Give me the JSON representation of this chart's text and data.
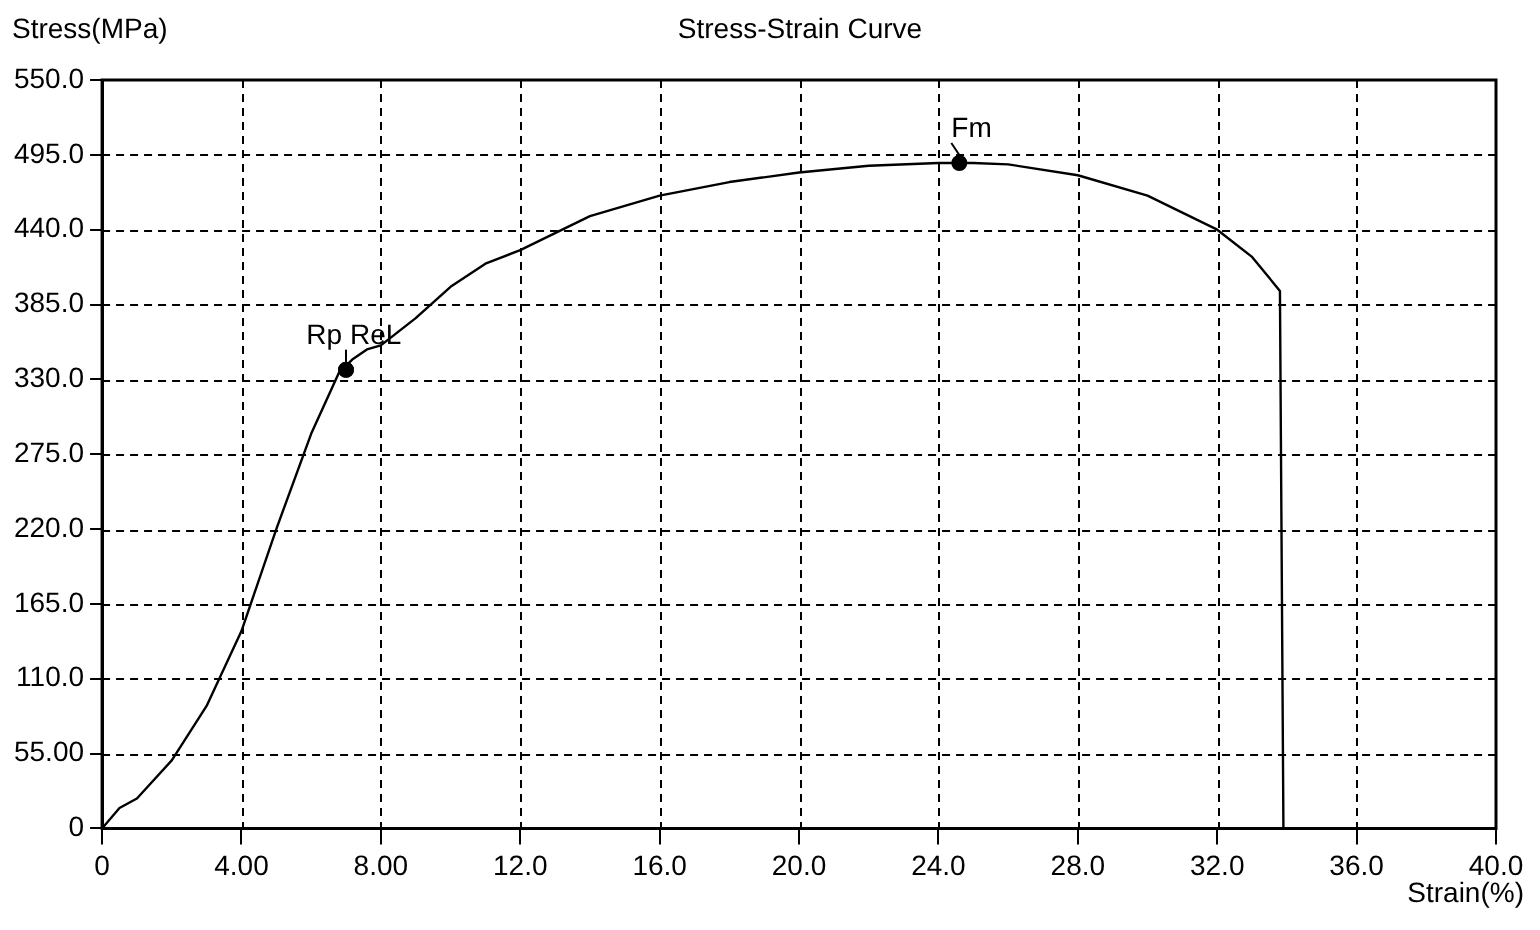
{
  "chart_data": {
    "type": "line",
    "title": "Stress-Strain Curve",
    "xlabel": "Strain(%)",
    "ylabel": "Stress(MPa)",
    "series": [
      {
        "type": "line",
        "color": "#000000",
        "marker": "none",
        "x": [
          0,
          0.5,
          1,
          2,
          3,
          4,
          5,
          6,
          6.8,
          7.2,
          7.6,
          8,
          9,
          10,
          11,
          12,
          14,
          16,
          18,
          20,
          22,
          24,
          25,
          26,
          28,
          30,
          32,
          33,
          33.8,
          33.9
        ],
        "values": [
          0,
          15,
          22,
          50,
          90,
          145,
          220,
          290,
          335,
          345,
          352,
          355,
          375,
          398,
          415,
          425,
          450,
          465,
          475,
          482,
          487,
          489,
          489,
          488,
          480,
          465,
          440,
          420,
          395,
          0
        ]
      },
      {
        "type": "scatter",
        "color": "#000000",
        "marker": "circle",
        "x": [
          7,
          7,
          24.6
        ],
        "values": [
          337,
          337,
          489
        ],
        "value_labels": [
          "Rp",
          "ReL",
          "Fm"
        ]
      }
    ],
    "xlim": [
      0,
      40
    ],
    "xticks": [
      0,
      {
        "value": 4,
        "label": "4.00"
      },
      {
        "value": 8,
        "label": "8.00"
      },
      {
        "value": 12,
        "label": "12.0"
      },
      {
        "value": 16,
        "label": "16.0"
      },
      {
        "value": 20,
        "label": "20.0"
      },
      {
        "value": 24,
        "label": "24.0"
      },
      {
        "value": 28,
        "label": "28.0"
      },
      {
        "value": 32,
        "label": "32.0"
      },
      {
        "value": 36,
        "label": "36.0"
      },
      {
        "value": 40,
        "label": "40.0"
      }
    ],
    "ylim": [
      0,
      550
    ],
    "yticks": [
      0,
      {
        "value": 55,
        "label": "55.00"
      },
      {
        "value": 110,
        "label": "110.0"
      },
      {
        "value": 165,
        "label": "165.0"
      },
      {
        "value": 220,
        "label": "220.0"
      },
      {
        "value": 275,
        "label": "275.0"
      },
      {
        "value": 330,
        "label": "330.0"
      },
      {
        "value": 385,
        "label": "385.0"
      },
      {
        "value": 440,
        "label": "440.0"
      },
      {
        "value": 495,
        "label": "495.0"
      },
      {
        "value": 550,
        "label": "550.0"
      }
    ],
    "grid": true,
    "legend": false
  }
}
